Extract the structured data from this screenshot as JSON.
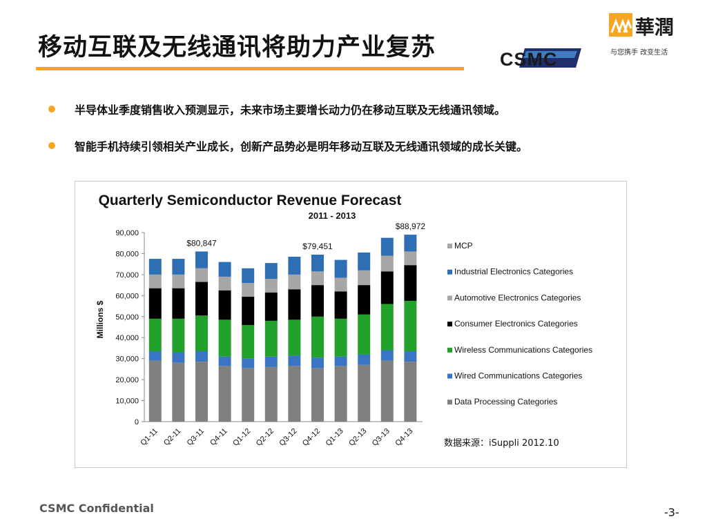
{
  "slide": {
    "title": "移动互联及无线通讯将助力产业复苏",
    "bullets": [
      "半导体业季度销售收入预测显示，未来市场主要增长动力仍在移动互联及无线通讯领域。",
      "智能手机持续引领相关产业成长，创新产品势必是明年移动互联及无线通讯领域的成长关键。"
    ],
    "logo_csmc_text": "CSMC",
    "logo_hr_text": "華潤",
    "logo_hr_slogan": "与您携手  改变生活",
    "source": "数据来源：iSuppli 2012.10",
    "footer": "CSMC Confidential",
    "page_number": "-3-"
  },
  "colors": {
    "accent": "#f5a623",
    "data_processing": "#808080",
    "wired": "#3a75c4",
    "wireless": "#22a22a",
    "consumer": "#000000",
    "automotive": "#a6a6a6",
    "industrial": "#2e6eb5",
    "mcp": "#a6a6a6"
  },
  "chart_data": {
    "type": "bar",
    "stacked": true,
    "title": "Quarterly Semiconductor Revenue Forecast",
    "subtitle": "2011 - 2013",
    "ylabel": "Millions $",
    "ylim": [
      0,
      90000
    ],
    "yticks": [
      "0",
      "10,000",
      "20,000",
      "30,000",
      "40,000",
      "50,000",
      "60,000",
      "70,000",
      "80,000",
      "90,000"
    ],
    "legend_position": "right",
    "categories": [
      "Q1-11",
      "Q2-11",
      "Q3-11",
      "Q4-11",
      "Q1-12",
      "Q2-12",
      "Q3-12",
      "Q4-12",
      "Q1-13",
      "Q2-13",
      "Q3-13",
      "Q4-13"
    ],
    "series": [
      {
        "name": "Data Processing Categories",
        "color": "#808080",
        "values": [
          29000,
          28000,
          28500,
          26500,
          25500,
          26000,
          26500,
          25500,
          26500,
          27000,
          29000,
          28500
        ]
      },
      {
        "name": "Wired Communications Categories",
        "color": "#3a75c4",
        "values": [
          4500,
          5000,
          5000,
          4500,
          4500,
          5000,
          5000,
          5000,
          4500,
          5000,
          5000,
          5000
        ]
      },
      {
        "name": "Wireless Communications Categories",
        "color": "#22a22a",
        "values": [
          15500,
          16000,
          17000,
          17500,
          16000,
          17000,
          17000,
          19500,
          18000,
          19000,
          22000,
          24000
        ]
      },
      {
        "name": "Consumer Electronics Categories",
        "color": "#000000",
        "values": [
          14500,
          14500,
          16000,
          14000,
          13500,
          13500,
          14500,
          15000,
          13000,
          14000,
          15500,
          17000
        ]
      },
      {
        "name": "Automotive Electronics Categories",
        "color": "#a6a6a6",
        "values": [
          6500,
          6500,
          6500,
          6500,
          6500,
          6500,
          7000,
          6500,
          6500,
          7000,
          7500,
          6500
        ]
      },
      {
        "name": "Industrial Electronics Categories",
        "color": "#2e6eb5",
        "values": [
          7500,
          7500,
          8000,
          7000,
          7000,
          7500,
          8500,
          8000,
          8500,
          8500,
          8500,
          8000
        ]
      },
      {
        "name": "MCP",
        "color": "#a6a6a6",
        "values": [
          0,
          0,
          0,
          0,
          0,
          0,
          0,
          0,
          0,
          0,
          0,
          0
        ]
      }
    ],
    "annotations": [
      {
        "category": "Q3-11",
        "label": "$80,847"
      },
      {
        "category": "Q4-12",
        "label": "$79,451"
      },
      {
        "category": "Q4-13",
        "label": "$88,972"
      }
    ]
  }
}
